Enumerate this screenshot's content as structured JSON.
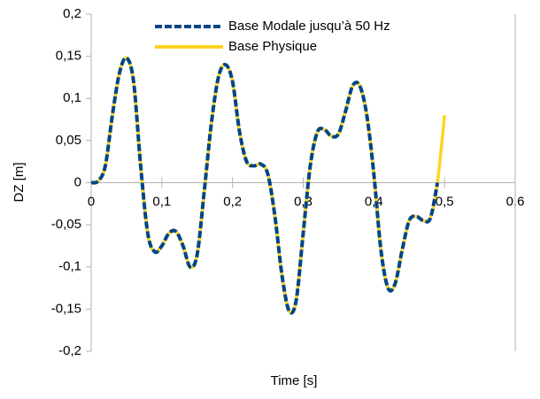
{
  "chart_data": {
    "type": "line",
    "x_label": "Time [s]",
    "y_label": "DZ [m]",
    "x": [
      0,
      0.01,
      0.02,
      0.03,
      0.04,
      0.05,
      0.06,
      0.07,
      0.08,
      0.09,
      0.1,
      0.11,
      0.12,
      0.13,
      0.14,
      0.15,
      0.16,
      0.17,
      0.18,
      0.19,
      0.2,
      0.21,
      0.22,
      0.23,
      0.24,
      0.25,
      0.26,
      0.27,
      0.28,
      0.29,
      0.3,
      0.31,
      0.32,
      0.33,
      0.34,
      0.35,
      0.36,
      0.37,
      0.38,
      0.39,
      0.4,
      0.41,
      0.42,
      0.43,
      0.44,
      0.45,
      0.46,
      0.47,
      0.48,
      0.49,
      0.5
    ],
    "series": [
      {
        "name": "Base Physique",
        "color": "#ffd320",
        "dashed": false,
        "values": [
          0,
          0.002,
          0.02,
          0.08,
          0.13,
          0.148,
          0.12,
          0.02,
          -0.06,
          -0.082,
          -0.075,
          -0.06,
          -0.058,
          -0.075,
          -0.1,
          -0.085,
          -0.01,
          0.07,
          0.125,
          0.14,
          0.12,
          0.06,
          0.025,
          0.02,
          0.022,
          0.01,
          -0.04,
          -0.11,
          -0.152,
          -0.14,
          -0.06,
          0.02,
          0.06,
          0.063,
          0.055,
          0.058,
          0.085,
          0.115,
          0.115,
          0.08,
          0.01,
          -0.08,
          -0.125,
          -0.12,
          -0.08,
          -0.045,
          -0.04,
          -0.045,
          -0.042,
          0.0,
          0.08
        ]
      },
      {
        "name": "Base Modale jusqu’à 50 Hz",
        "color": "#004586",
        "dashed": true,
        "values": [
          0,
          0.002,
          0.02,
          0.08,
          0.13,
          0.148,
          0.12,
          0.02,
          -0.06,
          -0.082,
          -0.075,
          -0.06,
          -0.058,
          -0.075,
          -0.1,
          -0.085,
          -0.01,
          0.07,
          0.125,
          0.14,
          0.12,
          0.06,
          0.025,
          0.02,
          0.022,
          0.01,
          -0.04,
          -0.11,
          -0.152,
          -0.14,
          -0.06,
          0.02,
          0.06,
          0.063,
          0.055,
          0.058,
          0.085,
          0.115,
          0.115,
          0.08,
          0.01,
          -0.08,
          -0.125,
          -0.12,
          -0.08,
          -0.045,
          -0.04,
          -0.045,
          -0.042,
          0.0,
          null
        ]
      }
    ],
    "legend_order": [
      1,
      0
    ],
    "xlim": [
      0,
      0.6
    ],
    "ylim": [
      -0.2,
      0.2
    ],
    "xticks": [
      0,
      {
        "value": 0.1,
        "label": "0,1"
      },
      {
        "value": 0.2,
        "label": "0,2"
      },
      {
        "value": 0.3,
        "label": "0,3"
      },
      {
        "value": 0.4,
        "label": "0,4"
      },
      {
        "value": 0.5,
        "label": "0,5"
      },
      {
        "value": 0.6,
        "label": "0,6"
      }
    ],
    "yticks": [
      {
        "value": 0.2,
        "label": "0,2"
      },
      {
        "value": 0.15,
        "label": "0,15"
      },
      {
        "value": 0.1,
        "label": "0,1"
      },
      {
        "value": 0.05,
        "label": "0,05"
      },
      0,
      {
        "value": -0.05,
        "label": "-0,05"
      },
      {
        "value": -0.1,
        "label": "-0,1"
      },
      {
        "value": -0.15,
        "label": "-0,15"
      },
      {
        "value": -0.2,
        "label": "-0,2"
      }
    ],
    "grid": false
  }
}
